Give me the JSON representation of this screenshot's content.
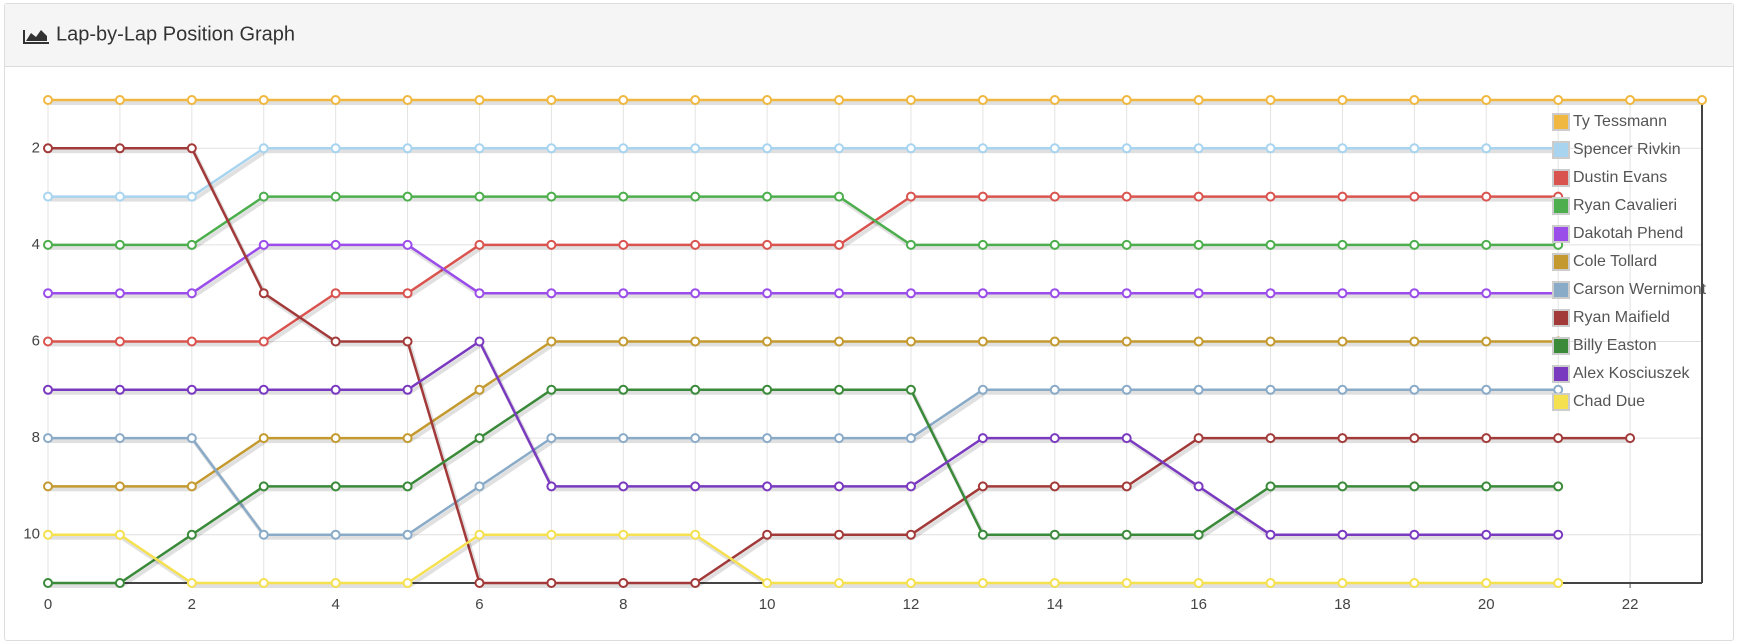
{
  "chart_data": {
    "type": "line",
    "title": "Lap-by-Lap Position Graph",
    "x": [
      0,
      1,
      2,
      3,
      4,
      5,
      6,
      7,
      8,
      9,
      10,
      11,
      12,
      13,
      14,
      15,
      16,
      17,
      18,
      19,
      20,
      21,
      22,
      23
    ],
    "xlim": [
      0,
      23
    ],
    "xticks": [
      0,
      2,
      4,
      6,
      8,
      10,
      12,
      14,
      16,
      18,
      20,
      22
    ],
    "ylim": [
      1,
      11
    ],
    "yticks": [
      2,
      4,
      6,
      8,
      10
    ],
    "y_inverted": true,
    "grid": true,
    "legend": "upper-right",
    "series": [
      {
        "name": "Ty Tessmann",
        "color": "#f0b840",
        "values": [
          1,
          1,
          1,
          1,
          1,
          1,
          1,
          1,
          1,
          1,
          1,
          1,
          1,
          1,
          1,
          1,
          1,
          1,
          1,
          1,
          1,
          1,
          1,
          1
        ]
      },
      {
        "name": "Spencer Rivkin",
        "color": "#a8d4f0",
        "values": [
          3,
          3,
          3,
          2,
          2,
          2,
          2,
          2,
          2,
          2,
          2,
          2,
          2,
          2,
          2,
          2,
          2,
          2,
          2,
          2,
          2,
          2,
          null,
          null
        ]
      },
      {
        "name": "Dustin Evans",
        "color": "#d9534f",
        "values": [
          6,
          6,
          6,
          6,
          5,
          5,
          4,
          4,
          4,
          4,
          4,
          4,
          3,
          3,
          3,
          3,
          3,
          3,
          3,
          3,
          3,
          3,
          null,
          null
        ]
      },
      {
        "name": "Ryan Cavalieri",
        "color": "#4cae4c",
        "values": [
          4,
          4,
          4,
          3,
          3,
          3,
          3,
          3,
          3,
          3,
          3,
          3,
          4,
          4,
          4,
          4,
          4,
          4,
          4,
          4,
          4,
          4,
          null,
          null
        ]
      },
      {
        "name": "Dakotah Phend",
        "color": "#9b4dea",
        "values": [
          5,
          5,
          5,
          4,
          4,
          4,
          5,
          5,
          5,
          5,
          5,
          5,
          5,
          5,
          5,
          5,
          5,
          5,
          5,
          5,
          5,
          5,
          null,
          null
        ]
      },
      {
        "name": "Cole Tollard",
        "color": "#c49a30",
        "values": [
          9,
          9,
          9,
          8,
          8,
          8,
          7,
          6,
          6,
          6,
          6,
          6,
          6,
          6,
          6,
          6,
          6,
          6,
          6,
          6,
          6,
          6,
          null,
          null
        ]
      },
      {
        "name": "Carson Wernimont",
        "color": "#8aabc8",
        "values": [
          8,
          8,
          8,
          10,
          10,
          10,
          9,
          8,
          8,
          8,
          8,
          8,
          8,
          7,
          7,
          7,
          7,
          7,
          7,
          7,
          7,
          7,
          null,
          null
        ]
      },
      {
        "name": "Ryan Maifield",
        "color": "#a33a3a",
        "values": [
          2,
          2,
          2,
          5,
          6,
          6,
          11,
          11,
          11,
          11,
          10,
          10,
          10,
          9,
          9,
          9,
          8,
          8,
          8,
          8,
          8,
          8,
          8,
          null
        ]
      },
      {
        "name": "Billy Easton",
        "color": "#3a8a3a",
        "values": [
          11,
          11,
          10,
          9,
          9,
          9,
          8,
          7,
          7,
          7,
          7,
          7,
          7,
          10,
          10,
          10,
          10,
          9,
          9,
          9,
          9,
          9,
          null,
          null
        ]
      },
      {
        "name": "Alex Kosciuszek",
        "color": "#7a3ac0",
        "values": [
          7,
          7,
          7,
          7,
          7,
          7,
          6,
          9,
          9,
          9,
          9,
          9,
          9,
          8,
          8,
          8,
          9,
          10,
          10,
          10,
          10,
          10,
          null,
          null
        ]
      },
      {
        "name": "Chad Due",
        "color": "#f5e050",
        "values": [
          10,
          10,
          11,
          11,
          11,
          11,
          10,
          10,
          10,
          10,
          11,
          11,
          11,
          11,
          11,
          11,
          11,
          11,
          11,
          11,
          11,
          11,
          null,
          null
        ]
      }
    ]
  }
}
